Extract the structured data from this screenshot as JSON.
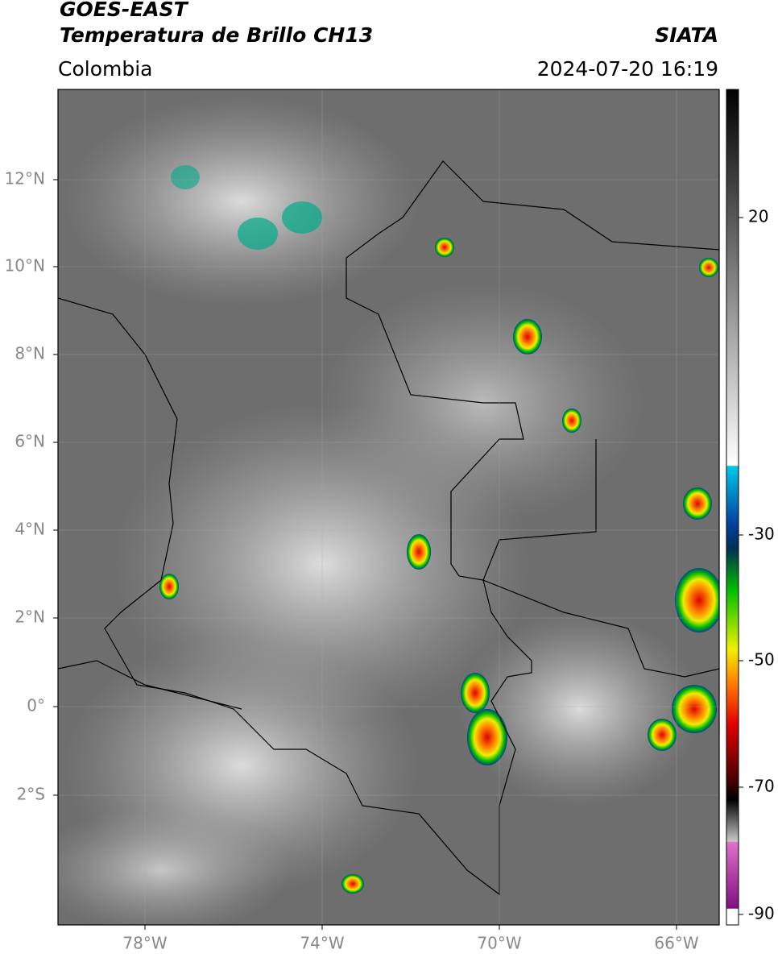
{
  "header": {
    "satellite": "GOES-EAST",
    "product": "Temperatura de Brillo CH13",
    "source": "SIATA",
    "region": "Colombia",
    "datetime": "2024-07-20 16:19"
  },
  "map": {
    "lat_labels": [
      "12°N",
      "10°N",
      "8°N",
      "6°N",
      "4°N",
      "2°N",
      "0°",
      "2°S"
    ],
    "lon_labels": [
      "78°W",
      "74°W",
      "70°W",
      "66°W"
    ]
  },
  "colorbar": {
    "labels": [
      "20",
      "-30",
      "-50",
      "-70",
      "-90"
    ]
  }
}
